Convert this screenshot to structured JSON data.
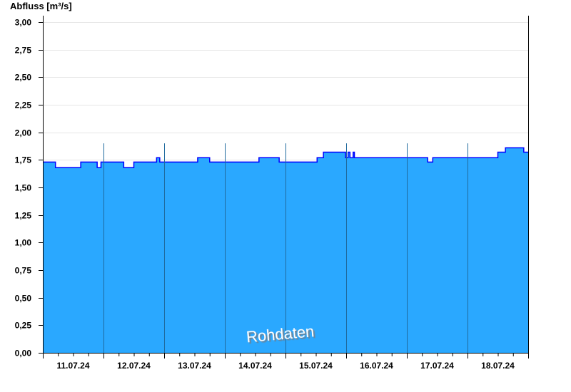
{
  "chart_data": {
    "type": "area",
    "ylabel": "Abfluss [m³/s]",
    "ylim": [
      0,
      3.0
    ],
    "yticks": [
      "0,00",
      "0,25",
      "0,50",
      "0,75",
      "1,00",
      "1,25",
      "1,50",
      "1,75",
      "2,00",
      "2,25",
      "2,50",
      "2,75",
      "3,00"
    ],
    "xlim": [
      "11.07.24 00:00",
      "19.07.24 00:00"
    ],
    "xticks": [
      "11.07.24",
      "12.07.24",
      "13.07.24",
      "14.07.24",
      "15.07.24",
      "16.07.24",
      "17.07.24",
      "18.07.24"
    ],
    "grid": true,
    "watermark": "Rohdaten",
    "colors": {
      "fill": "#2aa8ff",
      "line": "#0000ff",
      "day_separator": "#1f6a9e",
      "grid": "#e6e6e6"
    },
    "series": [
      {
        "step": true,
        "points": [
          [
            "11.07.24 00:00",
            1.73
          ],
          [
            "11.07.24 05:00",
            1.68
          ],
          [
            "11.07.24 15:00",
            1.73
          ],
          [
            "11.07.24 21:30",
            1.68
          ],
          [
            "11.07.24 23:00",
            1.73
          ],
          [
            "12.07.24 08:00",
            1.68
          ],
          [
            "12.07.24 12:00",
            1.73
          ],
          [
            "12.07.24 21:00",
            1.77
          ],
          [
            "12.07.24 22:15",
            1.73
          ],
          [
            "13.07.24 13:15",
            1.77
          ],
          [
            "13.07.24 18:00",
            1.73
          ],
          [
            "14.07.24 13:30",
            1.77
          ],
          [
            "14.07.24 21:30",
            1.73
          ],
          [
            "15.07.24 12:30",
            1.77
          ],
          [
            "15.07.24 15:00",
            1.82
          ],
          [
            "15.07.24 23:45",
            1.77
          ],
          [
            "16.07.24 00:45",
            1.82
          ],
          [
            "16.07.24 01:30",
            1.77
          ],
          [
            "16.07.24 02:45",
            1.82
          ],
          [
            "16.07.24 03:15",
            1.77
          ],
          [
            "17.07.24 08:15",
            1.73
          ],
          [
            "17.07.24 10:15",
            1.77
          ],
          [
            "18.07.24 12:00",
            1.82
          ],
          [
            "18.07.24 15:00",
            1.86
          ],
          [
            "18.07.24 22:15",
            1.82
          ],
          [
            "19.07.24 00:00",
            1.82
          ]
        ]
      }
    ]
  }
}
